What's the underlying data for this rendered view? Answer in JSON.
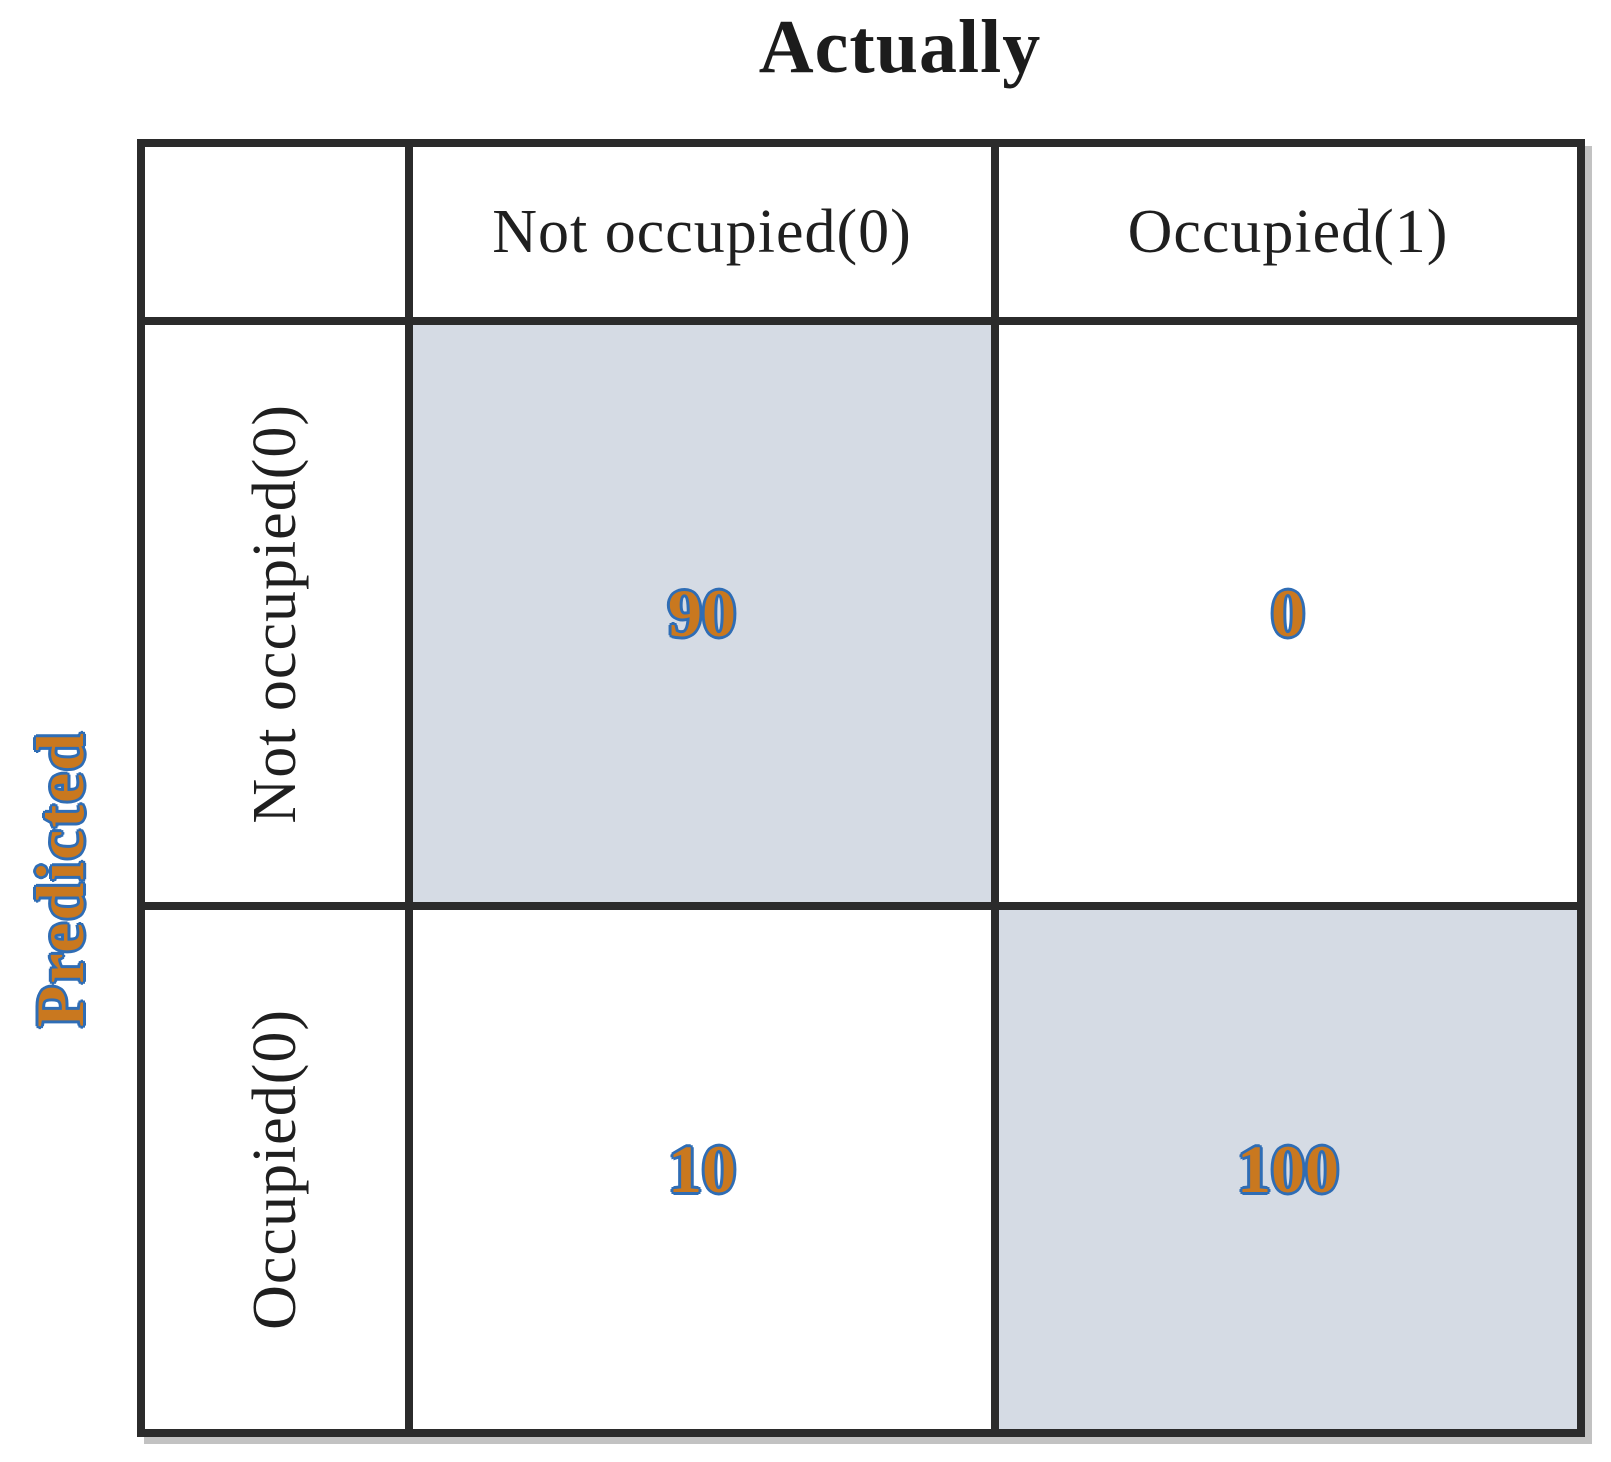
{
  "title": "Actually",
  "y_axis_label": "Predicted",
  "matrix": {
    "col_headers": [
      "Not occupied(0)",
      "Occupied(1)"
    ],
    "row_headers": [
      "Not occupied(0)",
      "Occupied(0)"
    ],
    "cells": [
      [
        "90",
        "0"
      ],
      [
        "10",
        "100"
      ]
    ]
  },
  "colors": {
    "highlight_cell_bg": "#d5dbe4",
    "number_fill": "#c9781f",
    "number_outline": "#2f6db5",
    "grid_border": "#2b2b2b",
    "header_text": "#1f1f1f"
  },
  "chart_data": {
    "type": "heatmap",
    "title": "Actually",
    "xlabel": "Actually",
    "ylabel": "Predicted",
    "x_categories": [
      "Not occupied(0)",
      "Occupied(1)"
    ],
    "y_categories": [
      "Not occupied(0)",
      "Occupied(0)"
    ],
    "values": [
      [
        90,
        0
      ],
      [
        10,
        100
      ]
    ],
    "highlighted_cells": [
      [
        0,
        0
      ],
      [
        1,
        1
      ]
    ],
    "legend": "none",
    "grid": true
  }
}
